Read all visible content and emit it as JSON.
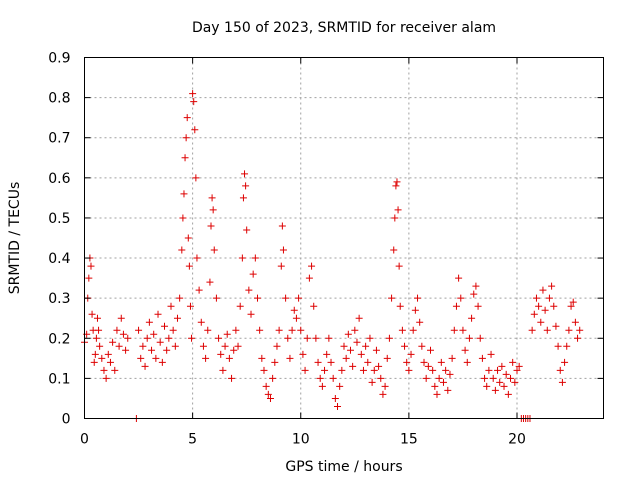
{
  "chart_data": {
    "type": "scatter",
    "title": "Day 150 of 2023, SRMTID for receiver alam",
    "xlabel": "GPS time / hours",
    "ylabel": "SRMTID / TECUs",
    "xlim": [
      0,
      24
    ],
    "ylim": [
      0,
      0.9
    ],
    "xticks": [
      0,
      5,
      10,
      15,
      20
    ],
    "yticks": [
      0,
      0.1,
      0.2,
      0.3,
      0.4,
      0.5,
      0.6,
      0.7,
      0.8,
      0.9
    ],
    "ytick_labels": [
      "0",
      "0.1",
      "0.2",
      "0.3",
      "0.4",
      "0.5",
      "0.6",
      "0.7",
      "0.8",
      "0.9"
    ],
    "xtick_labels": [
      "0",
      "5",
      "10",
      "15",
      "20"
    ],
    "grid": true,
    "marker": "plus",
    "color": "#dd0000",
    "series": [
      {
        "name": "SRMTID",
        "points": [
          [
            0.0,
            0.19
          ],
          [
            0.1,
            0.21
          ],
          [
            0.15,
            0.3
          ],
          [
            0.2,
            0.35
          ],
          [
            0.25,
            0.4
          ],
          [
            0.3,
            0.38
          ],
          [
            0.35,
            0.26
          ],
          [
            0.4,
            0.22
          ],
          [
            0.45,
            0.14
          ],
          [
            0.5,
            0.16
          ],
          [
            0.55,
            0.2
          ],
          [
            0.6,
            0.25
          ],
          [
            0.65,
            0.22
          ],
          [
            0.7,
            0.18
          ],
          [
            0.8,
            0.15
          ],
          [
            0.9,
            0.12
          ],
          [
            1.0,
            0.1
          ],
          [
            1.1,
            0.16
          ],
          [
            1.2,
            0.14
          ],
          [
            1.3,
            0.19
          ],
          [
            1.4,
            0.12
          ],
          [
            1.5,
            0.22
          ],
          [
            1.6,
            0.18
          ],
          [
            1.7,
            0.25
          ],
          [
            1.8,
            0.21
          ],
          [
            1.9,
            0.17
          ],
          [
            2.0,
            0.2
          ],
          [
            2.4,
            0.0
          ],
          [
            2.5,
            0.22
          ],
          [
            2.6,
            0.15
          ],
          [
            2.7,
            0.18
          ],
          [
            2.8,
            0.13
          ],
          [
            2.9,
            0.2
          ],
          [
            3.0,
            0.24
          ],
          [
            3.1,
            0.17
          ],
          [
            3.2,
            0.21
          ],
          [
            3.3,
            0.15
          ],
          [
            3.4,
            0.26
          ],
          [
            3.5,
            0.19
          ],
          [
            3.6,
            0.14
          ],
          [
            3.7,
            0.23
          ],
          [
            3.8,
            0.17
          ],
          [
            3.9,
            0.2
          ],
          [
            4.0,
            0.28
          ],
          [
            4.1,
            0.22
          ],
          [
            4.2,
            0.18
          ],
          [
            4.3,
            0.25
          ],
          [
            4.4,
            0.3
          ],
          [
            4.5,
            0.42
          ],
          [
            4.55,
            0.5
          ],
          [
            4.6,
            0.56
          ],
          [
            4.65,
            0.65
          ],
          [
            4.7,
            0.7
          ],
          [
            4.75,
            0.75
          ],
          [
            4.8,
            0.45
          ],
          [
            4.85,
            0.38
          ],
          [
            4.9,
            0.28
          ],
          [
            4.95,
            0.2
          ],
          [
            5.0,
            0.81
          ],
          [
            5.05,
            0.79
          ],
          [
            5.1,
            0.72
          ],
          [
            5.15,
            0.6
          ],
          [
            5.2,
            0.4
          ],
          [
            5.3,
            0.32
          ],
          [
            5.4,
            0.24
          ],
          [
            5.5,
            0.18
          ],
          [
            5.6,
            0.15
          ],
          [
            5.7,
            0.22
          ],
          [
            5.8,
            0.34
          ],
          [
            5.85,
            0.48
          ],
          [
            5.9,
            0.55
          ],
          [
            5.95,
            0.52
          ],
          [
            6.0,
            0.42
          ],
          [
            6.1,
            0.3
          ],
          [
            6.2,
            0.2
          ],
          [
            6.3,
            0.16
          ],
          [
            6.4,
            0.12
          ],
          [
            6.5,
            0.18
          ],
          [
            6.6,
            0.21
          ],
          [
            6.7,
            0.15
          ],
          [
            6.8,
            0.1
          ],
          [
            6.9,
            0.17
          ],
          [
            7.0,
            0.22
          ],
          [
            7.1,
            0.18
          ],
          [
            7.2,
            0.28
          ],
          [
            7.3,
            0.4
          ],
          [
            7.35,
            0.55
          ],
          [
            7.4,
            0.61
          ],
          [
            7.45,
            0.58
          ],
          [
            7.5,
            0.47
          ],
          [
            7.6,
            0.32
          ],
          [
            7.7,
            0.26
          ],
          [
            7.8,
            0.36
          ],
          [
            7.9,
            0.4
          ],
          [
            8.0,
            0.3
          ],
          [
            8.1,
            0.22
          ],
          [
            8.2,
            0.15
          ],
          [
            8.3,
            0.12
          ],
          [
            8.4,
            0.08
          ],
          [
            8.5,
            0.06
          ],
          [
            8.6,
            0.05
          ],
          [
            8.7,
            0.1
          ],
          [
            8.8,
            0.14
          ],
          [
            8.9,
            0.18
          ],
          [
            9.0,
            0.22
          ],
          [
            9.1,
            0.38
          ],
          [
            9.15,
            0.48
          ],
          [
            9.2,
            0.42
          ],
          [
            9.3,
            0.3
          ],
          [
            9.4,
            0.2
          ],
          [
            9.5,
            0.15
          ],
          [
            9.6,
            0.22
          ],
          [
            9.7,
            0.27
          ],
          [
            9.8,
            0.25
          ],
          [
            9.9,
            0.3
          ],
          [
            10.0,
            0.22
          ],
          [
            10.1,
            0.16
          ],
          [
            10.2,
            0.12
          ],
          [
            10.3,
            0.2
          ],
          [
            10.4,
            0.35
          ],
          [
            10.5,
            0.38
          ],
          [
            10.6,
            0.28
          ],
          [
            10.7,
            0.2
          ],
          [
            10.8,
            0.14
          ],
          [
            10.9,
            0.1
          ],
          [
            11.0,
            0.08
          ],
          [
            11.1,
            0.12
          ],
          [
            11.2,
            0.16
          ],
          [
            11.3,
            0.2
          ],
          [
            11.4,
            0.14
          ],
          [
            11.5,
            0.1
          ],
          [
            11.6,
            0.05
          ],
          [
            11.7,
            0.03
          ],
          [
            11.8,
            0.08
          ],
          [
            11.9,
            0.12
          ],
          [
            12.0,
            0.18
          ],
          [
            12.1,
            0.15
          ],
          [
            12.2,
            0.21
          ],
          [
            12.3,
            0.17
          ],
          [
            12.4,
            0.13
          ],
          [
            12.5,
            0.22
          ],
          [
            12.6,
            0.19
          ],
          [
            12.7,
            0.25
          ],
          [
            12.8,
            0.16
          ],
          [
            12.9,
            0.12
          ],
          [
            13.0,
            0.18
          ],
          [
            13.1,
            0.14
          ],
          [
            13.2,
            0.2
          ],
          [
            13.3,
            0.09
          ],
          [
            13.4,
            0.12
          ],
          [
            13.5,
            0.17
          ],
          [
            13.6,
            0.13
          ],
          [
            13.7,
            0.1
          ],
          [
            13.8,
            0.06
          ],
          [
            13.9,
            0.08
          ],
          [
            14.0,
            0.15
          ],
          [
            14.1,
            0.2
          ],
          [
            14.2,
            0.3
          ],
          [
            14.3,
            0.42
          ],
          [
            14.35,
            0.5
          ],
          [
            14.4,
            0.58
          ],
          [
            14.45,
            0.59
          ],
          [
            14.5,
            0.52
          ],
          [
            14.55,
            0.38
          ],
          [
            14.6,
            0.28
          ],
          [
            14.7,
            0.22
          ],
          [
            14.8,
            0.18
          ],
          [
            14.9,
            0.14
          ],
          [
            15.0,
            0.12
          ],
          [
            15.1,
            0.16
          ],
          [
            15.2,
            0.22
          ],
          [
            15.3,
            0.27
          ],
          [
            15.4,
            0.3
          ],
          [
            15.5,
            0.24
          ],
          [
            15.6,
            0.18
          ],
          [
            15.7,
            0.14
          ],
          [
            15.8,
            0.1
          ],
          [
            15.9,
            0.13
          ],
          [
            16.0,
            0.17
          ],
          [
            16.1,
            0.12
          ],
          [
            16.2,
            0.08
          ],
          [
            16.3,
            0.06
          ],
          [
            16.4,
            0.1
          ],
          [
            16.5,
            0.14
          ],
          [
            16.6,
            0.09
          ],
          [
            16.7,
            0.12
          ],
          [
            16.8,
            0.07
          ],
          [
            16.9,
            0.11
          ],
          [
            17.0,
            0.15
          ],
          [
            17.1,
            0.22
          ],
          [
            17.2,
            0.28
          ],
          [
            17.3,
            0.35
          ],
          [
            17.4,
            0.3
          ],
          [
            17.5,
            0.22
          ],
          [
            17.6,
            0.17
          ],
          [
            17.7,
            0.14
          ],
          [
            17.8,
            0.2
          ],
          [
            17.9,
            0.25
          ],
          [
            18.0,
            0.31
          ],
          [
            18.1,
            0.33
          ],
          [
            18.2,
            0.28
          ],
          [
            18.3,
            0.2
          ],
          [
            18.4,
            0.15
          ],
          [
            18.5,
            0.1
          ],
          [
            18.6,
            0.08
          ],
          [
            18.7,
            0.12
          ],
          [
            18.8,
            0.16
          ],
          [
            18.9,
            0.1
          ],
          [
            19.0,
            0.07
          ],
          [
            19.1,
            0.12
          ],
          [
            19.2,
            0.09
          ],
          [
            19.3,
            0.13
          ],
          [
            19.4,
            0.08
          ],
          [
            19.5,
            0.11
          ],
          [
            19.6,
            0.06
          ],
          [
            19.7,
            0.1
          ],
          [
            19.8,
            0.14
          ],
          [
            19.9,
            0.09
          ],
          [
            20.0,
            0.12
          ],
          [
            20.1,
            0.13
          ],
          [
            20.2,
            0.0
          ],
          [
            20.3,
            0.0
          ],
          [
            20.4,
            0.0
          ],
          [
            20.5,
            0.0
          ],
          [
            20.6,
            0.0
          ],
          [
            20.7,
            0.22
          ],
          [
            20.8,
            0.26
          ],
          [
            20.9,
            0.3
          ],
          [
            21.0,
            0.28
          ],
          [
            21.1,
            0.24
          ],
          [
            21.2,
            0.32
          ],
          [
            21.3,
            0.27
          ],
          [
            21.4,
            0.22
          ],
          [
            21.5,
            0.3
          ],
          [
            21.6,
            0.33
          ],
          [
            21.7,
            0.28
          ],
          [
            21.8,
            0.23
          ],
          [
            21.9,
            0.18
          ],
          [
            22.0,
            0.12
          ],
          [
            22.1,
            0.09
          ],
          [
            22.2,
            0.14
          ],
          [
            22.3,
            0.18
          ],
          [
            22.4,
            0.22
          ],
          [
            22.5,
            0.28
          ],
          [
            22.6,
            0.29
          ],
          [
            22.7,
            0.24
          ],
          [
            22.8,
            0.2
          ],
          [
            22.9,
            0.22
          ]
        ]
      }
    ]
  }
}
